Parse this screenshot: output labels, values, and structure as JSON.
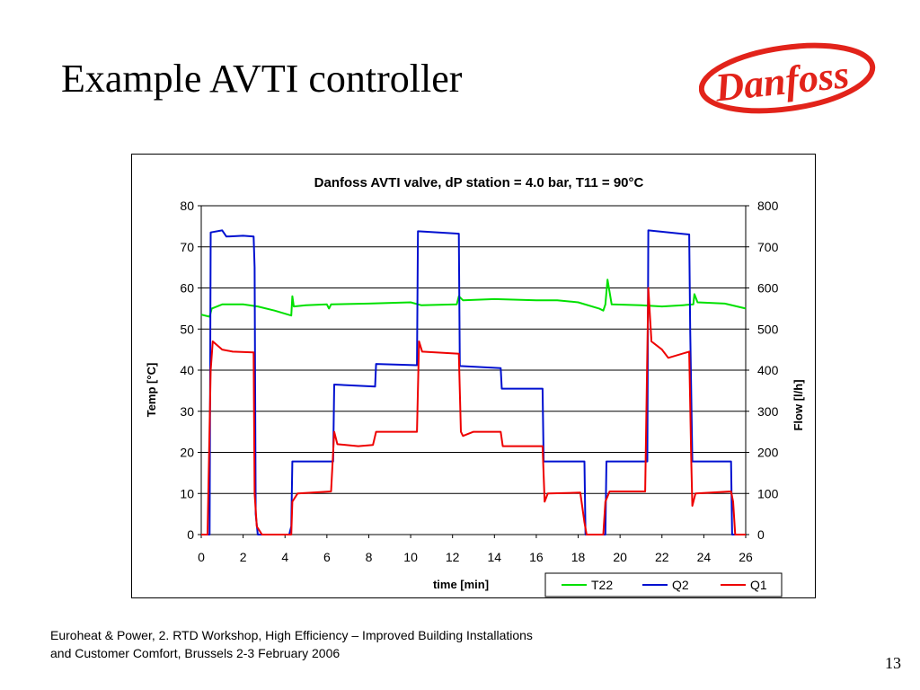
{
  "slide": {
    "title": "Example AVTI controller",
    "logo_text": "Danfoss",
    "footer_line1": "Euroheat & Power, 2. RTD Workshop, High Efficiency – Improved Building Installations",
    "footer_line2": "and Customer Comfort, Brussels 2-3 February 2006",
    "page_number": "13"
  },
  "colors": {
    "logo_red": "#e2231a",
    "t22": "#00e000",
    "q2": "#0010d0",
    "q1": "#ee0000"
  },
  "chart_data": {
    "type": "line",
    "title": "Danfoss AVTI valve, dP station = 4.0 bar, T11 = 90°C",
    "xlabel": "time [min]",
    "ylabel": "Temp [°C]",
    "y2label": "Flow [l/h]",
    "xlim": [
      0,
      26
    ],
    "ylim": [
      0,
      80
    ],
    "y2lim": [
      0,
      800
    ],
    "xticks": [
      0,
      2,
      4,
      6,
      8,
      10,
      12,
      14,
      16,
      18,
      20,
      22,
      24,
      26
    ],
    "yticks": [
      0,
      10,
      20,
      30,
      40,
      50,
      60,
      70,
      80
    ],
    "y2ticks": [
      0,
      100,
      200,
      300,
      400,
      500,
      600,
      700,
      800
    ],
    "grid": "horizontal",
    "legend": "bottom-right",
    "series": [
      {
        "name": "T22",
        "axis": "left",
        "color": "#00e000",
        "points": [
          [
            0,
            53.5
          ],
          [
            0.4,
            53
          ],
          [
            0.5,
            55
          ],
          [
            1.0,
            56
          ],
          [
            2.0,
            56
          ],
          [
            2.7,
            55.5
          ],
          [
            3.5,
            54.5
          ],
          [
            4.3,
            53.3
          ],
          [
            4.35,
            58
          ],
          [
            4.42,
            55.5
          ],
          [
            5.0,
            55.8
          ],
          [
            6.0,
            56
          ],
          [
            6.1,
            55
          ],
          [
            6.2,
            56
          ],
          [
            8,
            56.2
          ],
          [
            10,
            56.5
          ],
          [
            10.5,
            55.8
          ],
          [
            12.2,
            56
          ],
          [
            12.3,
            58
          ],
          [
            12.5,
            57
          ],
          [
            14,
            57.3
          ],
          [
            16,
            57
          ],
          [
            17,
            57
          ],
          [
            18,
            56.5
          ],
          [
            19.0,
            55
          ],
          [
            19.2,
            54.5
          ],
          [
            19.3,
            56
          ],
          [
            19.4,
            62
          ],
          [
            19.5,
            59
          ],
          [
            19.6,
            56
          ],
          [
            21,
            55.8
          ],
          [
            22,
            55.5
          ],
          [
            23,
            55.8
          ],
          [
            23.5,
            56
          ],
          [
            23.55,
            58.5
          ],
          [
            23.7,
            56.5
          ],
          [
            25,
            56.2
          ],
          [
            26,
            55
          ]
        ]
      },
      {
        "name": "Q2",
        "axis": "right",
        "color": "#0010d0",
        "points": [
          [
            0,
            0
          ],
          [
            0.4,
            0
          ],
          [
            0.45,
            735
          ],
          [
            1.0,
            740
          ],
          [
            1.2,
            725
          ],
          [
            2.0,
            727
          ],
          [
            2.5,
            725
          ],
          [
            2.55,
            650
          ],
          [
            2.6,
            50
          ],
          [
            2.7,
            0
          ],
          [
            4.2,
            0
          ],
          [
            4.3,
            20
          ],
          [
            4.35,
            178
          ],
          [
            6.3,
            178
          ],
          [
            6.35,
            365
          ],
          [
            8.3,
            360
          ],
          [
            8.35,
            415
          ],
          [
            10.3,
            412
          ],
          [
            10.35,
            738
          ],
          [
            12.3,
            732
          ],
          [
            12.35,
            410
          ],
          [
            14.3,
            405
          ],
          [
            14.35,
            355
          ],
          [
            16.3,
            355
          ],
          [
            16.35,
            178
          ],
          [
            18.3,
            178
          ],
          [
            18.35,
            0
          ],
          [
            19.3,
            0
          ],
          [
            19.35,
            178
          ],
          [
            21.3,
            178
          ],
          [
            21.35,
            740
          ],
          [
            23.3,
            730
          ],
          [
            23.35,
            500
          ],
          [
            23.45,
            178
          ],
          [
            25.3,
            178
          ],
          [
            25.35,
            0
          ],
          [
            26,
            0
          ]
        ]
      },
      {
        "name": "Q1",
        "axis": "left",
        "color": "#ee0000",
        "points": [
          [
            0,
            0
          ],
          [
            0.3,
            0
          ],
          [
            0.45,
            40
          ],
          [
            0.55,
            47
          ],
          [
            1.0,
            45
          ],
          [
            1.5,
            44.5
          ],
          [
            2.5,
            44.3
          ],
          [
            2.55,
            10
          ],
          [
            2.65,
            2
          ],
          [
            2.9,
            0
          ],
          [
            4.3,
            0
          ],
          [
            4.35,
            8
          ],
          [
            4.6,
            10
          ],
          [
            6.2,
            10.5
          ],
          [
            6.35,
            25
          ],
          [
            6.5,
            22
          ],
          [
            7.5,
            21.5
          ],
          [
            8.2,
            21.8
          ],
          [
            8.35,
            25
          ],
          [
            9.5,
            25
          ],
          [
            10.3,
            25
          ],
          [
            10.4,
            47
          ],
          [
            10.55,
            44.5
          ],
          [
            12.3,
            44
          ],
          [
            12.4,
            25
          ],
          [
            12.5,
            24
          ],
          [
            13.0,
            25
          ],
          [
            14.3,
            25
          ],
          [
            14.4,
            21.5
          ],
          [
            16.3,
            21.5
          ],
          [
            16.4,
            8
          ],
          [
            16.55,
            10
          ],
          [
            18.1,
            10.2
          ],
          [
            18.3,
            3
          ],
          [
            18.4,
            0
          ],
          [
            19.2,
            0
          ],
          [
            19.3,
            8
          ],
          [
            19.5,
            10.5
          ],
          [
            21.2,
            10.5
          ],
          [
            21.35,
            60
          ],
          [
            21.5,
            47
          ],
          [
            22.0,
            45
          ],
          [
            22.3,
            43
          ],
          [
            23.3,
            44.5
          ],
          [
            23.4,
            18
          ],
          [
            23.45,
            7
          ],
          [
            23.6,
            10
          ],
          [
            25.3,
            10.5
          ],
          [
            25.4,
            8
          ],
          [
            25.5,
            0
          ],
          [
            26,
            0
          ]
        ]
      }
    ]
  }
}
